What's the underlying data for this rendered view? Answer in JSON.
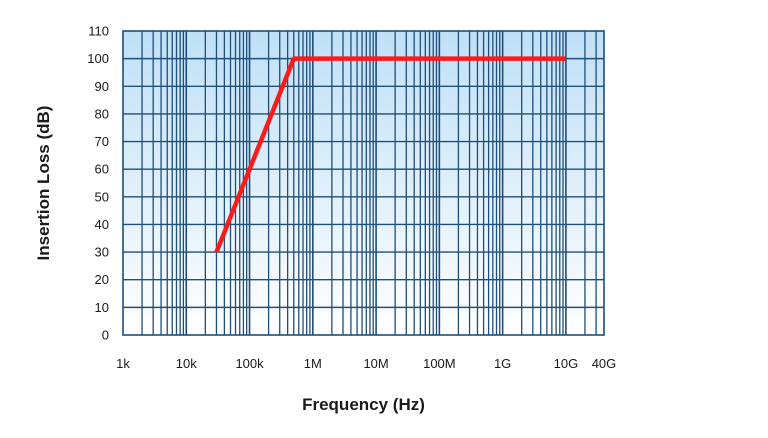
{
  "chart_data": {
    "type": "line",
    "title": "",
    "xlabel": "Frequency (Hz)",
    "ylabel": "Insertion Loss (dB)",
    "x_scale": "log",
    "xlim": [
      1000,
      40000000000
    ],
    "ylim": [
      0,
      110
    ],
    "x_ticks": [
      {
        "value": 1000,
        "label": "1k"
      },
      {
        "value": 10000,
        "label": "10k"
      },
      {
        "value": 100000,
        "label": "100k"
      },
      {
        "value": 1000000,
        "label": "1M"
      },
      {
        "value": 10000000,
        "label": "10M"
      },
      {
        "value": 100000000,
        "label": "100M"
      },
      {
        "value": 1000000000,
        "label": "1G"
      },
      {
        "value": 10000000000,
        "label": "10G"
      },
      {
        "value": 40000000000,
        "label": "40G"
      }
    ],
    "y_ticks": [
      0,
      10,
      20,
      30,
      40,
      50,
      60,
      70,
      80,
      90,
      100,
      110
    ],
    "grid": true,
    "series": [
      {
        "x": [
          30000,
          500000,
          10000000000
        ],
        "y": [
          30,
          100,
          100
        ],
        "color": "#ff1a1a"
      }
    ],
    "colors": {
      "plot_bg_top": "#bfe0f7",
      "plot_bg_bottom": "#ffffff",
      "grid": "#1f4e79",
      "line": "#ff1a1a"
    }
  }
}
